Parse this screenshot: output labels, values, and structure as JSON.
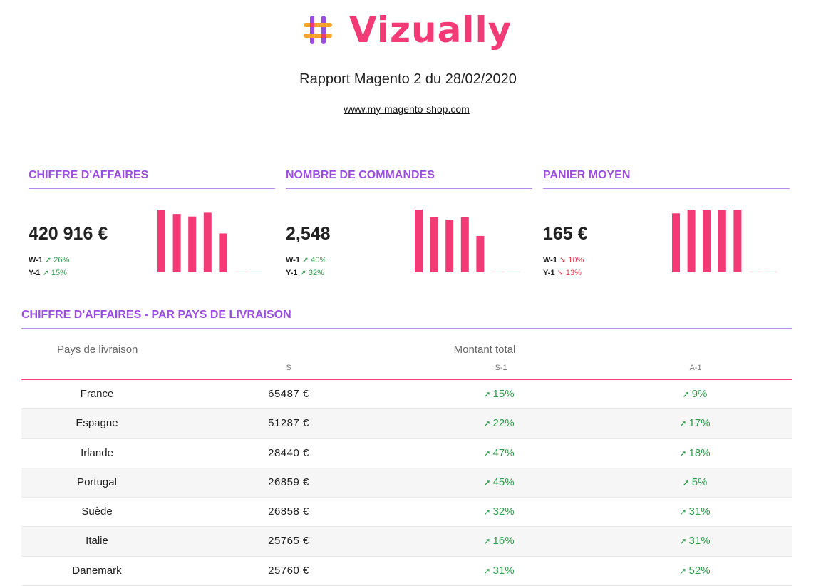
{
  "header": {
    "logo_text": "Vizually",
    "logo_icon": "vizually-hash-logo-icon",
    "report_title": "Rapport Magento 2 du 28/02/2020",
    "site": "www.my-magento-shop.com"
  },
  "colors": {
    "accent_pink": "#f23b76",
    "accent_purple": "#9b4de0",
    "positive": "#2e9c4a",
    "negative": "#e03d4a"
  },
  "kpis": [
    {
      "title": "CHIFFRE D'AFFAIRES",
      "value": "420 916 €",
      "w_label": "W-1",
      "w_trend": "up",
      "w_delta": "26%",
      "y_label": "Y-1",
      "y_trend": "up",
      "y_delta": "15%"
    },
    {
      "title": "NOMBRE DE COMMANDES",
      "value": "2,548",
      "w_label": "W-1",
      "w_trend": "up",
      "w_delta": "40%",
      "y_label": "Y-1",
      "y_trend": "up",
      "y_delta": "32%"
    },
    {
      "title": "PANIER MOYEN",
      "value": "165 €",
      "w_label": "W-1",
      "w_trend": "down",
      "w_delta": "10%",
      "y_label": "Y-1",
      "y_trend": "down",
      "y_delta": "13%"
    }
  ],
  "chart_data": [
    {
      "type": "bar",
      "values": [
        100,
        93,
        89,
        95,
        62,
        1,
        1
      ],
      "ylim": [
        0,
        100
      ]
    },
    {
      "type": "bar",
      "values": [
        100,
        88,
        84,
        88,
        58,
        1,
        1
      ],
      "ylim": [
        0,
        100
      ]
    },
    {
      "type": "bar",
      "values": [
        94,
        100,
        99,
        100,
        100,
        1,
        1
      ],
      "ylim": [
        0,
        100
      ]
    }
  ],
  "section": {
    "title": "CHIFFRE D'AFFAIRES - PAR PAYS DE LIVRAISON"
  },
  "table": {
    "col_country": "Pays de livraison",
    "col_total": "Montant total",
    "sub_s": "S",
    "sub_s1": "S-1",
    "sub_a1": "A-1",
    "rows": [
      {
        "country": "France",
        "s": "65487 €",
        "s1": "15%",
        "a1": "9%"
      },
      {
        "country": "Espagne",
        "s": "51287 €",
        "s1": "22%",
        "a1": "17%"
      },
      {
        "country": "Irlande",
        "s": "28440 €",
        "s1": "47%",
        "a1": "18%"
      },
      {
        "country": "Portugal",
        "s": "26859 €",
        "s1": "45%",
        "a1": "5%"
      },
      {
        "country": "Suède",
        "s": "26858 €",
        "s1": "32%",
        "a1": "31%"
      },
      {
        "country": "Italie",
        "s": "25765 €",
        "s1": "16%",
        "a1": "31%"
      },
      {
        "country": "Danemark",
        "s": "25760 €",
        "s1": "31%",
        "a1": "52%"
      }
    ]
  }
}
